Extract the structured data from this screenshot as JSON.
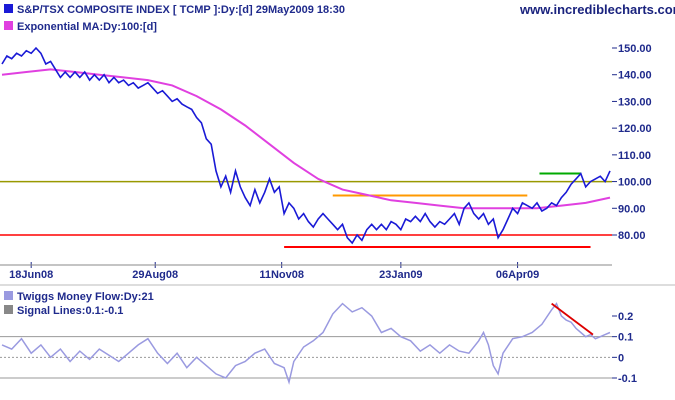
{
  "header": {
    "title": "S&P/TSX COMPOSITE INDEX [ TCMP ]:Dy:[d]  29May2009 18:30",
    "subtitle": "Exponential MA:Dy:100:[d]",
    "site": "www.incrediblecharts.com"
  },
  "lower": {
    "title": "Twiggs Money Flow:Dy:21",
    "subtitle": "Signal Lines:0.1:-0.1"
  },
  "colors": {
    "price": "#1a1ad6",
    "ema": "#e040e0",
    "tmf": "#9a9ae0",
    "support": "#ff0000",
    "resistance_orange": "#ff9900",
    "olive": "#999900",
    "green": "#00aa00",
    "trend_red": "#dd0000",
    "grid": "#999999",
    "axis_text": "#1f2a8c"
  },
  "chart_data": [
    {
      "type": "line",
      "name": "price-panel",
      "ylim": [
        73,
        156
      ],
      "yticks": [
        80,
        90,
        100,
        110,
        120,
        130,
        140,
        150
      ],
      "ytick_labels": [
        "80.00",
        "90.00",
        "100.00",
        "110.00",
        "120.00",
        "130.00",
        "140.00",
        "150.00"
      ],
      "xlim": [
        0,
        250
      ],
      "xticks": [
        {
          "label": "18Jun08",
          "x": 12
        },
        {
          "label": "29Aug08",
          "x": 63
        },
        {
          "label": "11Nov08",
          "x": 115
        },
        {
          "label": "23Jan09",
          "x": 164
        },
        {
          "label": "06Apr09",
          "x": 212
        }
      ],
      "horizontal_lines": [
        {
          "name": "olive-resistance",
          "y": 100.0,
          "x0": 0,
          "x1": 250
        },
        {
          "name": "red-support",
          "y": 80.0,
          "x0": 0,
          "x1": 250
        }
      ],
      "segments": [
        {
          "name": "red-low-line",
          "x0": 116,
          "x1": 242,
          "y": 75.5
        },
        {
          "name": "orange-line",
          "x0": 136,
          "x1": 216,
          "y": 94.8
        },
        {
          "name": "green-line",
          "x0": 221,
          "x1": 238,
          "y": 103.0
        }
      ],
      "series": [
        {
          "name": "price",
          "points": [
            [
              0,
              144
            ],
            [
              2,
              147
            ],
            [
              4,
              146
            ],
            [
              6,
              148
            ],
            [
              8,
              147
            ],
            [
              10,
              149
            ],
            [
              12,
              148
            ],
            [
              14,
              150
            ],
            [
              16,
              148
            ],
            [
              18,
              144
            ],
            [
              20,
              145
            ],
            [
              22,
              142
            ],
            [
              24,
              139
            ],
            [
              26,
              141
            ],
            [
              28,
              139
            ],
            [
              30,
              141
            ],
            [
              32,
              139
            ],
            [
              34,
              141
            ],
            [
              36,
              138
            ],
            [
              38,
              140
            ],
            [
              40,
              138
            ],
            [
              42,
              140
            ],
            [
              44,
              137
            ],
            [
              46,
              139
            ],
            [
              48,
              137
            ],
            [
              50,
              138
            ],
            [
              52,
              136
            ],
            [
              54,
              137
            ],
            [
              56,
              135
            ],
            [
              58,
              136
            ],
            [
              60,
              137
            ],
            [
              62,
              135
            ],
            [
              64,
              133
            ],
            [
              66,
              134
            ],
            [
              68,
              132
            ],
            [
              70,
              130
            ],
            [
              72,
              131
            ],
            [
              74,
              129
            ],
            [
              76,
              128
            ],
            [
              78,
              127
            ],
            [
              80,
              124
            ],
            [
              82,
              122
            ],
            [
              84,
              116
            ],
            [
              86,
              114
            ],
            [
              88,
              104
            ],
            [
              90,
              98
            ],
            [
              92,
              102
            ],
            [
              94,
              96
            ],
            [
              96,
              104
            ],
            [
              98,
              98
            ],
            [
              100,
              94
            ],
            [
              102,
              91
            ],
            [
              104,
              97
            ],
            [
              106,
              92
            ],
            [
              108,
              96
            ],
            [
              110,
              101
            ],
            [
              112,
              96
            ],
            [
              114,
              98
            ],
            [
              116,
              88
            ],
            [
              118,
              92
            ],
            [
              120,
              90
            ],
            [
              122,
              86
            ],
            [
              124,
              88
            ],
            [
              126,
              85
            ],
            [
              128,
              83
            ],
            [
              130,
              86
            ],
            [
              132,
              88
            ],
            [
              134,
              86
            ],
            [
              136,
              84
            ],
            [
              138,
              82
            ],
            [
              140,
              84
            ],
            [
              142,
              79
            ],
            [
              144,
              77
            ],
            [
              146,
              80
            ],
            [
              148,
              78
            ],
            [
              150,
              82
            ],
            [
              152,
              84
            ],
            [
              154,
              82
            ],
            [
              156,
              84
            ],
            [
              158,
              82
            ],
            [
              160,
              85
            ],
            [
              162,
              84
            ],
            [
              164,
              82
            ],
            [
              166,
              86
            ],
            [
              168,
              85
            ],
            [
              170,
              87
            ],
            [
              172,
              85
            ],
            [
              174,
              88
            ],
            [
              176,
              85
            ],
            [
              178,
              83
            ],
            [
              180,
              85
            ],
            [
              182,
              84
            ],
            [
              184,
              86
            ],
            [
              186,
              88
            ],
            [
              188,
              84
            ],
            [
              190,
              90
            ],
            [
              192,
              92
            ],
            [
              194,
              88
            ],
            [
              196,
              86
            ],
            [
              198,
              88
            ],
            [
              200,
              84
            ],
            [
              202,
              86
            ],
            [
              204,
              79
            ],
            [
              206,
              82
            ],
            [
              208,
              86
            ],
            [
              210,
              90
            ],
            [
              212,
              88
            ],
            [
              214,
              92
            ],
            [
              216,
              91
            ],
            [
              218,
              90
            ],
            [
              220,
              92
            ],
            [
              222,
              89
            ],
            [
              224,
              90
            ],
            [
              226,
              92
            ],
            [
              228,
              91
            ],
            [
              230,
              94
            ],
            [
              232,
              96
            ],
            [
              234,
              99
            ],
            [
              236,
              101
            ],
            [
              238,
              103
            ],
            [
              240,
              98
            ],
            [
              242,
              100
            ],
            [
              244,
              101
            ],
            [
              246,
              102
            ],
            [
              248,
              100
            ],
            [
              250,
              104
            ]
          ]
        },
        {
          "name": "ema",
          "points": [
            [
              0,
              140
            ],
            [
              10,
              141
            ],
            [
              20,
              142
            ],
            [
              30,
              141
            ],
            [
              40,
              140
            ],
            [
              50,
              139
            ],
            [
              60,
              138
            ],
            [
              70,
              136
            ],
            [
              80,
              132
            ],
            [
              90,
              127
            ],
            [
              100,
              121
            ],
            [
              110,
              114
            ],
            [
              120,
              107
            ],
            [
              130,
              101
            ],
            [
              140,
              97
            ],
            [
              150,
              95
            ],
            [
              160,
              93
            ],
            [
              170,
              92
            ],
            [
              180,
              91
            ],
            [
              190,
              90
            ],
            [
              200,
              90
            ],
            [
              210,
              90
            ],
            [
              220,
              90
            ],
            [
              230,
              91
            ],
            [
              240,
              92
            ],
            [
              250,
              94
            ]
          ]
        }
      ]
    },
    {
      "type": "line",
      "name": "twiggs-money-flow-panel",
      "ylim": [
        -0.15,
        0.3
      ],
      "yticks": [
        -0.1,
        0,
        0.1,
        0.2
      ],
      "ytick_labels": [
        "-0.1",
        "0",
        "0.1",
        "0.2"
      ],
      "xlim": [
        0,
        250
      ],
      "horizontal_lines": [
        {
          "name": "signal-upper",
          "y": 0.1
        },
        {
          "name": "zero-line",
          "y": 0.0
        },
        {
          "name": "signal-lower",
          "y": -0.1
        }
      ],
      "segments": [
        {
          "name": "tmf-trendline",
          "x0": 226,
          "y0": 0.26,
          "x1": 243,
          "y1": 0.11
        }
      ],
      "series": [
        {
          "name": "tmf",
          "points": [
            [
              0,
              0.06
            ],
            [
              4,
              0.04
            ],
            [
              8,
              0.09
            ],
            [
              12,
              0.02
            ],
            [
              16,
              0.06
            ],
            [
              20,
              0.0
            ],
            [
              24,
              0.04
            ],
            [
              28,
              -0.02
            ],
            [
              32,
              0.03
            ],
            [
              36,
              -0.01
            ],
            [
              40,
              0.04
            ],
            [
              44,
              0.01
            ],
            [
              48,
              -0.02
            ],
            [
              52,
              0.02
            ],
            [
              56,
              0.06
            ],
            [
              60,
              0.09
            ],
            [
              64,
              0.02
            ],
            [
              68,
              -0.03
            ],
            [
              72,
              0.02
            ],
            [
              76,
              -0.05
            ],
            [
              80,
              0.0
            ],
            [
              84,
              -0.04
            ],
            [
              88,
              -0.08
            ],
            [
              92,
              -0.1
            ],
            [
              96,
              -0.04
            ],
            [
              100,
              -0.02
            ],
            [
              104,
              0.02
            ],
            [
              108,
              0.04
            ],
            [
              112,
              -0.03
            ],
            [
              116,
              -0.05
            ],
            [
              118,
              -0.12
            ],
            [
              120,
              -0.02
            ],
            [
              124,
              0.05
            ],
            [
              128,
              0.08
            ],
            [
              132,
              0.12
            ],
            [
              136,
              0.21
            ],
            [
              140,
              0.26
            ],
            [
              144,
              0.22
            ],
            [
              148,
              0.24
            ],
            [
              152,
              0.2
            ],
            [
              156,
              0.12
            ],
            [
              160,
              0.14
            ],
            [
              164,
              0.1
            ],
            [
              168,
              0.08
            ],
            [
              172,
              0.03
            ],
            [
              176,
              0.06
            ],
            [
              180,
              0.02
            ],
            [
              184,
              0.06
            ],
            [
              188,
              0.03
            ],
            [
              192,
              0.02
            ],
            [
              196,
              0.08
            ],
            [
              198,
              0.12
            ],
            [
              200,
              0.06
            ],
            [
              202,
              -0.04
            ],
            [
              204,
              -0.08
            ],
            [
              206,
              0.02
            ],
            [
              210,
              0.09
            ],
            [
              214,
              0.1
            ],
            [
              218,
              0.12
            ],
            [
              222,
              0.16
            ],
            [
              226,
              0.23
            ],
            [
              228,
              0.26
            ],
            [
              230,
              0.2
            ],
            [
              232,
              0.18
            ],
            [
              234,
              0.17
            ],
            [
              236,
              0.14
            ],
            [
              238,
              0.12
            ],
            [
              240,
              0.1
            ],
            [
              242,
              0.11
            ],
            [
              244,
              0.09
            ],
            [
              246,
              0.1
            ],
            [
              248,
              0.11
            ],
            [
              250,
              0.12
            ]
          ]
        }
      ]
    }
  ]
}
